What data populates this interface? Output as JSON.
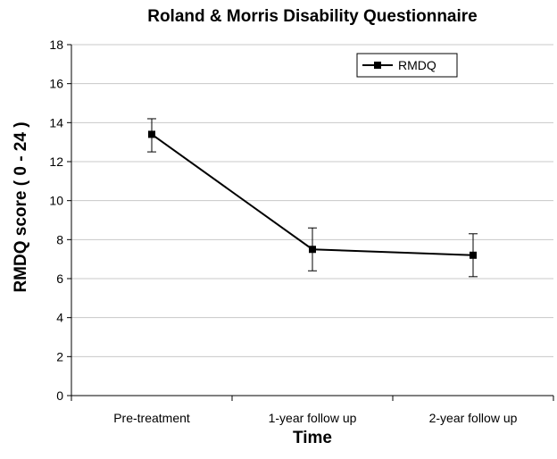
{
  "chart_data": {
    "type": "line",
    "title": "Roland & Morris Disability Questionnaire",
    "xlabel": "Time",
    "ylabel": "RMDQ score ( 0 - 24 )",
    "categories": [
      "Pre-treatment",
      "1-year follow up",
      "2-year follow up"
    ],
    "ylim": [
      0,
      18
    ],
    "yticks": [
      0,
      2,
      4,
      6,
      8,
      10,
      12,
      14,
      16,
      18
    ],
    "grid": true,
    "legend_position": "top-right",
    "series": [
      {
        "name": "RMDQ",
        "values": [
          13.4,
          7.5,
          7.2
        ],
        "error_low": [
          12.5,
          6.4,
          6.1
        ],
        "error_high": [
          14.2,
          8.6,
          8.3
        ],
        "color": "#000000",
        "marker": "square"
      }
    ]
  }
}
